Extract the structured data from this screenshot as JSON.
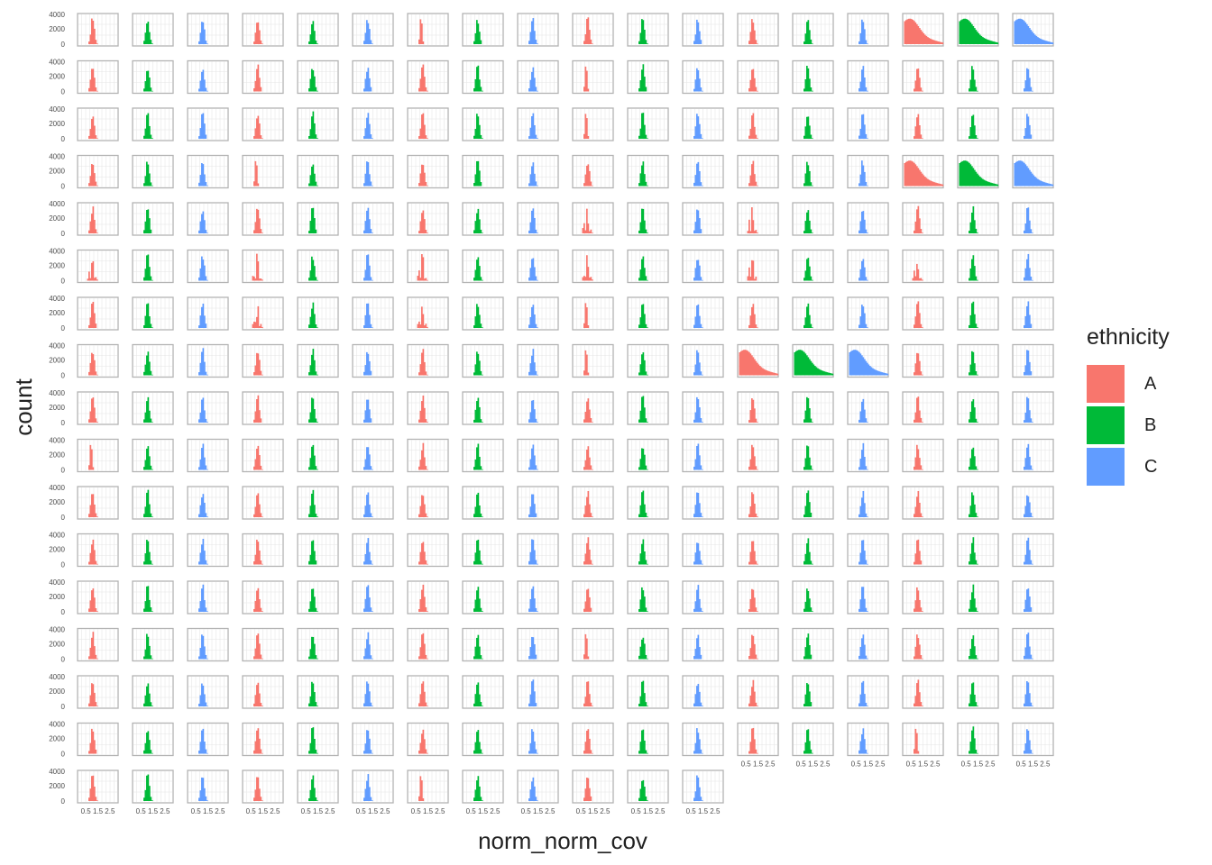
{
  "chart_data": {
    "type": "histogram-facets",
    "xlabel": "norm_norm_cov",
    "ylabel": "count",
    "x_tick_labels": [
      "0.5",
      "1.5",
      "2.5"
    ],
    "y_tick_labels": [
      "0",
      "2000",
      "4000"
    ],
    "xlim": [
      0,
      2.5
    ],
    "ylim": [
      0,
      4000
    ],
    "grid": true,
    "legend": {
      "title": "ethnicity",
      "position": "right",
      "entries": [
        {
          "name": "A",
          "color": "#F8766D"
        },
        {
          "name": "B",
          "color": "#00BA38"
        },
        {
          "name": "C",
          "color": "#619CFF"
        }
      ]
    },
    "facet_grid": {
      "rows": 17,
      "cols": 18,
      "last_row_cols": 12
    },
    "wide_panels": [
      [
        0,
        15
      ],
      [
        0,
        16
      ],
      [
        0,
        17
      ],
      [
        3,
        15
      ],
      [
        3,
        16
      ],
      [
        3,
        17
      ],
      [
        7,
        12
      ],
      [
        7,
        13
      ],
      [
        7,
        14
      ]
    ],
    "bimodal_panels": [
      [
        4,
        9
      ],
      [
        4,
        12
      ],
      [
        5,
        0
      ],
      [
        5,
        3
      ],
      [
        5,
        6
      ],
      [
        5,
        9
      ],
      [
        5,
        12
      ],
      [
        5,
        15
      ],
      [
        6,
        3
      ],
      [
        6,
        6
      ]
    ],
    "narrow_panels": [
      [
        0,
        6
      ],
      [
        1,
        9
      ],
      [
        2,
        9
      ],
      [
        3,
        3
      ],
      [
        6,
        9
      ],
      [
        7,
        9
      ],
      [
        9,
        0
      ],
      [
        13,
        9
      ],
      [
        15,
        15
      ],
      [
        16,
        6
      ]
    ]
  }
}
